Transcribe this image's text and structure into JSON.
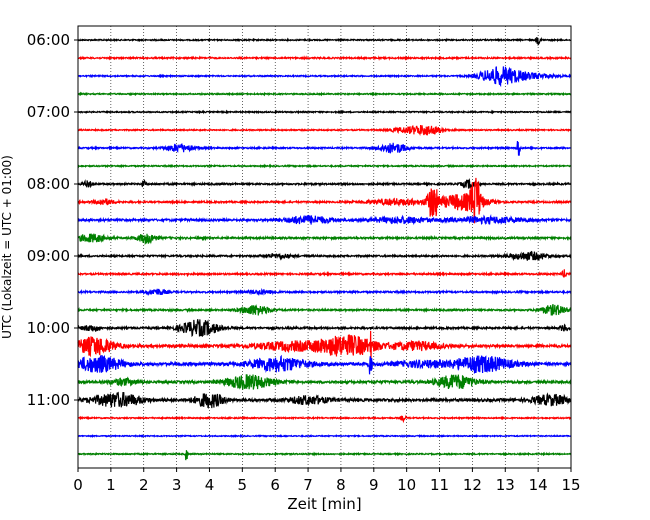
{
  "chart_data": {
    "type": "line",
    "xlabel": "Zeit  [min]",
    "ylabel": "UTC (Lokalzeit = UTC + 01:00)",
    "xlim": [
      0,
      15
    ],
    "x_ticks": [
      "0",
      "1",
      "2",
      "3",
      "4",
      "5",
      "6",
      "7",
      "8",
      "9",
      "10",
      "11",
      "12",
      "13",
      "14",
      "15"
    ],
    "y_ticks": [
      {
        "label": "06:00",
        "row": 0
      },
      {
        "label": "07:00",
        "row": 4
      },
      {
        "label": "08:00",
        "row": 8
      },
      {
        "label": "09:00",
        "row": 12
      },
      {
        "label": "10:00",
        "row": 16
      },
      {
        "label": "11:00",
        "row": 20
      }
    ],
    "grid": "vertical dotted lines at each minute",
    "row_interval_minutes": 15,
    "row_colors": [
      "#000000",
      "#ff0000",
      "#0000ff",
      "#008000"
    ],
    "traces": [
      {
        "start": "06:00",
        "color": "#000000",
        "amp": 0.6,
        "bursts": [
          [
            14.0,
            0.05,
            4
          ]
        ]
      },
      {
        "start": "06:15",
        "color": "#ff0000",
        "amp": 0.7,
        "bursts": []
      },
      {
        "start": "06:30",
        "color": "#0000ff",
        "amp": 0.6,
        "bursts": [
          [
            12.8,
            0.4,
            8
          ],
          [
            13.6,
            0.6,
            3
          ]
        ]
      },
      {
        "start": "06:45",
        "color": "#008000",
        "amp": 0.6,
        "bursts": []
      },
      {
        "start": "07:00",
        "color": "#000000",
        "amp": 0.6,
        "bursts": []
      },
      {
        "start": "07:15",
        "color": "#ff0000",
        "amp": 0.6,
        "bursts": [
          [
            10.6,
            0.35,
            5
          ],
          [
            9.9,
            0.3,
            2
          ]
        ]
      },
      {
        "start": "07:30",
        "color": "#0000ff",
        "amp": 0.7,
        "bursts": [
          [
            3.1,
            0.3,
            4
          ],
          [
            9.6,
            0.3,
            5
          ],
          [
            13.4,
            0.03,
            12
          ]
        ]
      },
      {
        "start": "07:45",
        "color": "#008000",
        "amp": 0.6,
        "bursts": []
      },
      {
        "start": "08:00",
        "color": "#000000",
        "amp": 0.8,
        "bursts": [
          [
            0.3,
            0.1,
            3
          ],
          [
            2.0,
            0.05,
            3
          ],
          [
            11.9,
            0.15,
            4
          ]
        ]
      },
      {
        "start": "08:15",
        "color": "#ff0000",
        "amp": 0.8,
        "bursts": [
          [
            0.8,
            0.2,
            3
          ],
          [
            10.8,
            0.12,
            16
          ],
          [
            12.1,
            0.1,
            22
          ],
          [
            11.7,
            0.5,
            8
          ],
          [
            9.7,
            0.6,
            3
          ]
        ]
      },
      {
        "start": "08:30",
        "color": "#0000ff",
        "amp": 1.0,
        "bursts": [
          [
            7.0,
            0.5,
            4
          ],
          [
            9.8,
            0.6,
            3
          ],
          [
            12.5,
            0.8,
            3
          ]
        ]
      },
      {
        "start": "08:45",
        "color": "#008000",
        "amp": 0.9,
        "bursts": [
          [
            0.4,
            0.3,
            4
          ],
          [
            2.1,
            0.2,
            5
          ]
        ]
      },
      {
        "start": "09:00",
        "color": "#000000",
        "amp": 0.8,
        "bursts": [
          [
            13.7,
            0.4,
            4
          ],
          [
            6.1,
            0.3,
            2
          ]
        ]
      },
      {
        "start": "09:15",
        "color": "#ff0000",
        "amp": 0.8,
        "bursts": [
          [
            14.8,
            0.05,
            4
          ]
        ]
      },
      {
        "start": "09:30",
        "color": "#0000ff",
        "amp": 0.8,
        "bursts": [
          [
            2.4,
            0.2,
            3
          ],
          [
            5.6,
            0.3,
            2
          ]
        ]
      },
      {
        "start": "09:45",
        "color": "#008000",
        "amp": 0.8,
        "bursts": [
          [
            5.4,
            0.3,
            5
          ],
          [
            14.5,
            0.3,
            5
          ]
        ]
      },
      {
        "start": "10:00",
        "color": "#000000",
        "amp": 0.9,
        "bursts": [
          [
            3.7,
            0.4,
            8
          ],
          [
            0.4,
            0.2,
            3
          ],
          [
            14.8,
            0.1,
            3
          ]
        ]
      },
      {
        "start": "10:15",
        "color": "#ff0000",
        "amp": 1.4,
        "bursts": [
          [
            0.5,
            0.4,
            9
          ],
          [
            8.2,
            0.6,
            10
          ],
          [
            6.5,
            0.8,
            4
          ],
          [
            10.3,
            0.5,
            4
          ],
          [
            8.9,
            0.02,
            10
          ]
        ]
      },
      {
        "start": "10:30",
        "color": "#0000ff",
        "amp": 1.4,
        "bursts": [
          [
            0.6,
            0.5,
            8
          ],
          [
            6.1,
            0.6,
            7
          ],
          [
            12.3,
            0.6,
            8
          ],
          [
            8.9,
            0.03,
            14
          ],
          [
            10.5,
            0.6,
            3
          ]
        ]
      },
      {
        "start": "10:45",
        "color": "#008000",
        "amp": 1.2,
        "bursts": [
          [
            5.2,
            0.5,
            7
          ],
          [
            11.5,
            0.4,
            7
          ],
          [
            1.4,
            0.3,
            3
          ]
        ]
      },
      {
        "start": "11:00",
        "color": "#000000",
        "amp": 1.4,
        "bursts": [
          [
            1.2,
            0.5,
            7
          ],
          [
            4.0,
            0.3,
            7
          ],
          [
            7.0,
            0.4,
            4
          ],
          [
            14.4,
            0.4,
            5
          ]
        ]
      },
      {
        "start": "11:15",
        "color": "#ff0000",
        "amp": 0.6,
        "bursts": [
          [
            9.9,
            0.05,
            3
          ]
        ]
      },
      {
        "start": "11:30",
        "color": "#0000ff",
        "amp": 0.5,
        "bursts": []
      },
      {
        "start": "11:45",
        "color": "#008000",
        "amp": 0.6,
        "bursts": [
          [
            3.3,
            0.02,
            10
          ]
        ]
      }
    ]
  }
}
